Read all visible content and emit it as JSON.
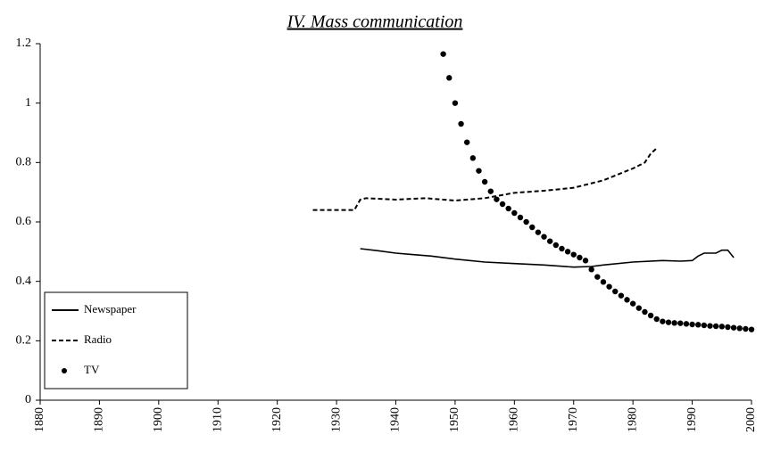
{
  "chart_data": {
    "type": "line",
    "title": "IV. Mass communication",
    "xlim": [
      1880,
      2000
    ],
    "xticks": [
      1880,
      1890,
      1900,
      1910,
      1920,
      1930,
      1940,
      1950,
      1960,
      1970,
      1980,
      1990,
      2000
    ],
    "ylim": [
      0,
      1.2
    ],
    "yticks": [
      0,
      0.2,
      0.4,
      0.6,
      0.8,
      1,
      1.2
    ],
    "grid": false,
    "legend": "lower left",
    "series": [
      {
        "name": "Newspaper",
        "color": "#000000",
        "line_style": "solid",
        "x": [
          1934,
          1937,
          1940,
          1943,
          1946,
          1950,
          1955,
          1960,
          1965,
          1970,
          1973,
          1975,
          1980,
          1985,
          1988,
          1990,
          1991,
          1992,
          1994,
          1995,
          1996,
          1997
        ],
        "values": [
          0.51,
          0.503,
          0.495,
          0.49,
          0.485,
          0.475,
          0.465,
          0.46,
          0.455,
          0.448,
          0.45,
          0.455,
          0.465,
          0.47,
          0.468,
          0.47,
          0.485,
          0.495,
          0.495,
          0.505,
          0.505,
          0.48
        ]
      },
      {
        "name": "Radio",
        "color": "#000000",
        "line_style": "dashed",
        "x": [
          1926,
          1930,
          1933,
          1934,
          1935,
          1940,
          1945,
          1950,
          1955,
          1960,
          1965,
          1970,
          1975,
          1980,
          1982,
          1983,
          1984
        ],
        "values": [
          0.64,
          0.64,
          0.64,
          0.675,
          0.68,
          0.675,
          0.68,
          0.672,
          0.68,
          0.698,
          0.705,
          0.715,
          0.74,
          0.78,
          0.8,
          0.83,
          0.848
        ]
      },
      {
        "name": "TV",
        "color": "#000000",
        "line_style": "dots",
        "x": [
          1948,
          1949,
          1950,
          1951,
          1952,
          1953,
          1954,
          1955,
          1956,
          1957,
          1958,
          1959,
          1960,
          1961,
          1962,
          1963,
          1964,
          1965,
          1966,
          1967,
          1968,
          1969,
          1970,
          1971,
          1972,
          1973,
          1974,
          1975,
          1976,
          1977,
          1978,
          1979,
          1980,
          1981,
          1982,
          1983,
          1984,
          1985,
          1986,
          1987,
          1988,
          1989,
          1990,
          1991,
          1992,
          1993,
          1994,
          1995,
          1996,
          1997,
          1998,
          1999,
          2000
        ],
        "values": [
          1.165,
          1.085,
          1.0,
          0.93,
          0.868,
          0.815,
          0.772,
          0.735,
          0.703,
          0.676,
          0.66,
          0.645,
          0.63,
          0.615,
          0.6,
          0.582,
          0.565,
          0.55,
          0.535,
          0.522,
          0.51,
          0.5,
          0.49,
          0.48,
          0.47,
          0.44,
          0.415,
          0.398,
          0.382,
          0.366,
          0.352,
          0.338,
          0.325,
          0.31,
          0.297,
          0.285,
          0.273,
          0.265,
          0.262,
          0.26,
          0.259,
          0.257,
          0.255,
          0.254,
          0.252,
          0.25,
          0.249,
          0.248,
          0.246,
          0.244,
          0.242,
          0.24,
          0.238
        ]
      }
    ]
  }
}
